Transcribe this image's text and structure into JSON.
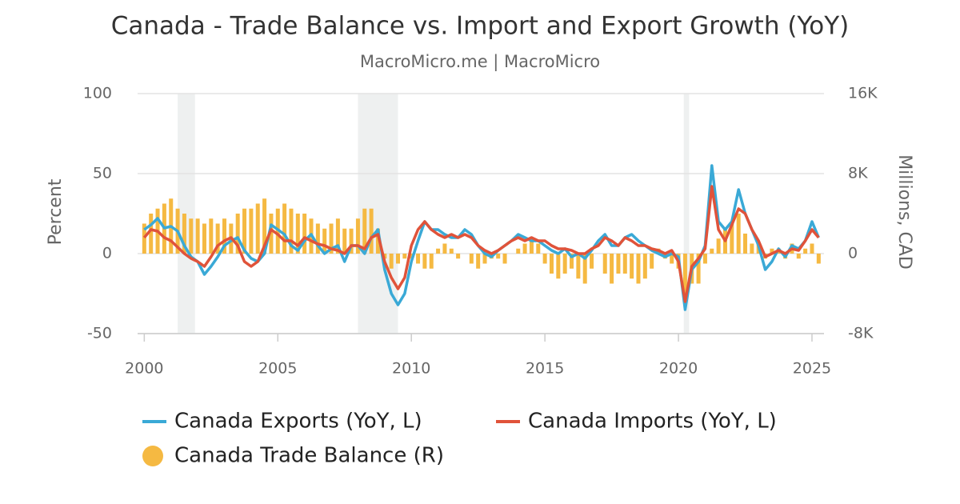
{
  "chart_data": {
    "type": "combo",
    "title": "Canada - Trade Balance vs. Import and Export Growth (YoY)",
    "subtitle": "MacroMicro.me | MacroMicro",
    "ylabel": "Percent",
    "y2label": "Millions, CAD",
    "xlim": [
      1999.75,
      2025.45
    ],
    "xticks": [
      2000,
      2005,
      2010,
      2015,
      2020,
      2025
    ],
    "ylim": [
      -50,
      100
    ],
    "yticks": [
      -50,
      0,
      50,
      100
    ],
    "y2lim": [
      -8000,
      16000
    ],
    "y2ticks": [
      {
        "value": -8000,
        "label": "-8K"
      },
      {
        "value": 0,
        "label": "0"
      },
      {
        "value": 8000,
        "label": "8K"
      },
      {
        "value": 16000,
        "label": "16K"
      }
    ],
    "grid": true,
    "recessions": [
      [
        2001.25,
        2001.9
      ],
      [
        2008.0,
        2009.5
      ],
      [
        2020.2,
        2020.4
      ]
    ],
    "x": [
      2000,
      2000.25,
      2000.5,
      2000.75,
      2001,
      2001.25,
      2001.5,
      2001.75,
      2002,
      2002.25,
      2002.5,
      2002.75,
      2003,
      2003.25,
      2003.5,
      2003.75,
      2004,
      2004.25,
      2004.5,
      2004.75,
      2005,
      2005.25,
      2005.5,
      2005.75,
      2006,
      2006.25,
      2006.5,
      2006.75,
      2007,
      2007.25,
      2007.5,
      2007.75,
      2008,
      2008.25,
      2008.5,
      2008.75,
      2009,
      2009.25,
      2009.5,
      2009.75,
      2010,
      2010.25,
      2010.5,
      2010.75,
      2011,
      2011.25,
      2011.5,
      2011.75,
      2012,
      2012.25,
      2012.5,
      2012.75,
      2013,
      2013.25,
      2013.5,
      2013.75,
      2014,
      2014.25,
      2014.5,
      2014.75,
      2015,
      2015.25,
      2015.5,
      2015.75,
      2016,
      2016.25,
      2016.5,
      2016.75,
      2017,
      2017.25,
      2017.5,
      2017.75,
      2018,
      2018.25,
      2018.5,
      2018.75,
      2019,
      2019.25,
      2019.5,
      2019.75,
      2020,
      2020.25,
      2020.5,
      2020.75,
      2021,
      2021.25,
      2021.5,
      2021.75,
      2022,
      2022.25,
      2022.5,
      2022.75,
      2023,
      2023.25,
      2023.5,
      2023.75,
      2024,
      2024.25,
      2024.5,
      2024.75,
      2025,
      2025.25
    ],
    "series": [
      {
        "name": "Canada Exports (YoY, L)",
        "kind": "line",
        "axis": "y",
        "color": "#3aa9d6",
        "values": [
          15,
          18,
          22,
          16,
          17,
          14,
          5,
          -2,
          -5,
          -13,
          -8,
          -2,
          5,
          8,
          10,
          2,
          -3,
          -5,
          0,
          18,
          15,
          12,
          5,
          2,
          8,
          12,
          5,
          0,
          3,
          5,
          -5,
          5,
          5,
          0,
          10,
          15,
          -10,
          -25,
          -32,
          -25,
          -5,
          8,
          20,
          15,
          15,
          12,
          10,
          10,
          15,
          12,
          5,
          0,
          -2,
          2,
          5,
          8,
          12,
          10,
          8,
          8,
          5,
          2,
          0,
          3,
          -2,
          0,
          -3,
          2,
          8,
          12,
          5,
          5,
          10,
          12,
          8,
          5,
          2,
          0,
          -2,
          0,
          -2,
          -35,
          -10,
          -5,
          5,
          55,
          20,
          15,
          20,
          40,
          25,
          15,
          5,
          -10,
          -5,
          3,
          -2,
          5,
          3,
          8,
          20,
          10
        ]
      },
      {
        "name": "Canada Imports (YoY, L)",
        "kind": "line",
        "axis": "y",
        "color": "#e0533a",
        "values": [
          10,
          15,
          14,
          10,
          8,
          4,
          0,
          -3,
          -5,
          -8,
          -2,
          5,
          8,
          10,
          5,
          -5,
          -8,
          -5,
          5,
          15,
          12,
          8,
          8,
          5,
          10,
          8,
          6,
          5,
          3,
          2,
          0,
          5,
          5,
          3,
          10,
          12,
          -5,
          -15,
          -22,
          -15,
          5,
          15,
          20,
          15,
          12,
          10,
          12,
          10,
          12,
          10,
          5,
          2,
          0,
          2,
          5,
          8,
          10,
          8,
          10,
          8,
          8,
          5,
          3,
          3,
          2,
          0,
          0,
          3,
          5,
          10,
          8,
          5,
          10,
          8,
          5,
          5,
          3,
          2,
          0,
          2,
          -5,
          -30,
          -8,
          -3,
          3,
          42,
          15,
          8,
          18,
          28,
          25,
          15,
          8,
          -2,
          0,
          2,
          0,
          3,
          2,
          8,
          15,
          10
        ]
      },
      {
        "name": "Canada Trade Balance (R)",
        "kind": "bar",
        "axis": "y2",
        "color": "#f5b942",
        "values": [
          3000,
          4000,
          4500,
          5000,
          5500,
          4500,
          4000,
          3500,
          3500,
          3000,
          3500,
          3000,
          3500,
          3000,
          4000,
          4500,
          4500,
          5000,
          5500,
          4000,
          4500,
          5000,
          4500,
          4000,
          4000,
          3500,
          3000,
          2500,
          3000,
          3500,
          2500,
          2500,
          3500,
          4500,
          4500,
          2500,
          -500,
          -1500,
          -1000,
          -500,
          -500,
          -1000,
          -1500,
          -1500,
          500,
          1000,
          500,
          -500,
          0,
          -1000,
          -1500,
          -1000,
          -500,
          -500,
          -1000,
          0,
          500,
          1000,
          1500,
          1000,
          -1000,
          -2000,
          -2500,
          -2000,
          -1500,
          -2500,
          -3000,
          -1500,
          0,
          -2000,
          -3000,
          -2000,
          -2000,
          -2500,
          -3000,
          -2500,
          -1500,
          500,
          -500,
          -1000,
          -1500,
          -4000,
          -3000,
          -3000,
          -1000,
          500,
          1500,
          2500,
          3000,
          4000,
          2000,
          1000,
          1000,
          -500,
          500,
          500,
          -500,
          1000,
          -500,
          500,
          1000,
          -1000
        ]
      }
    ]
  }
}
